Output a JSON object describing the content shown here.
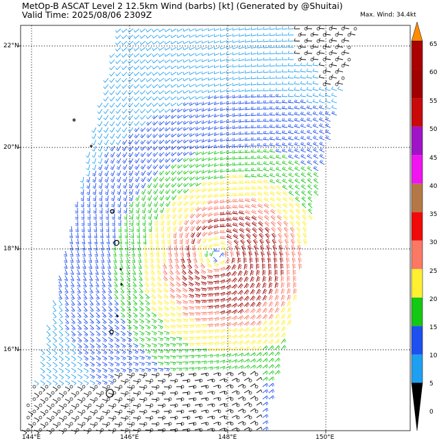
{
  "header": {
    "title": "MetOp-B ASCAT Level 2 12.5km Wind (barbs) [kt] (Generated by @Shuitai)",
    "valid_time": "Valid Time: 2025/08/06 2309Z",
    "max_wind": "Max. Wind: 34.4kt"
  },
  "axes": {
    "lat_ticks": [
      "22°N",
      "20°N",
      "18°N",
      "16°N"
    ],
    "lon_ticks": [
      "144°E",
      "146°E",
      "148°E",
      "150°E"
    ]
  },
  "colorbar": {
    "ticks": [
      "0",
      "5",
      "10",
      "15",
      "20",
      "25",
      "30",
      "35",
      "40",
      "45",
      "50",
      "55",
      "60",
      "65"
    ],
    "colors": [
      "#000000",
      "#1ea0f0",
      "#1e50f0",
      "#14c814",
      "#fff032",
      "#fa7864",
      "#f00a0a",
      "#b47846",
      "#f014f0",
      "#a014c8",
      "#c80a0a",
      "#a00000",
      "#aa0000",
      "#ff8c00"
    ]
  },
  "legend_colors": {
    "calm": "#000000",
    "light": "#1ea0f0",
    "moderate": "#1e50f0",
    "fresh": "#14c814",
    "strong": "#fff032",
    "gale": "#fa7864",
    "center": "#a00000"
  }
}
